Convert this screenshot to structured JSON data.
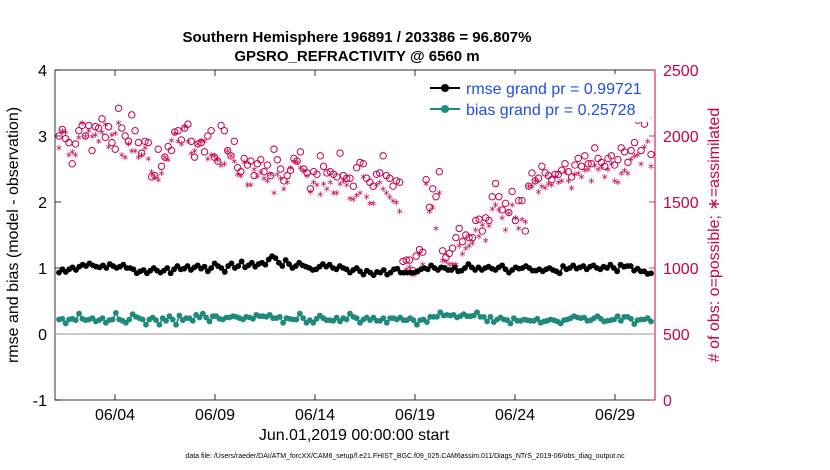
{
  "chart_data": {
    "type": "line",
    "title": "Southern Hemisphere 196891 / 203386 = 96.807%",
    "subtitle": "GPSRO_REFRACTIVITY @ 6560 m",
    "xlabel": "Jun.01,2019 00:00:00 start",
    "ylabel": "rmse and bias (model - observation)",
    "ylabel_right": "# of obs: o=possible; ∗=assimilated",
    "ylim": [
      -1,
      4
    ],
    "ylim_right": [
      0,
      2500
    ],
    "xlim_days": [
      1.0,
      31.0
    ],
    "yticks": [
      "-1",
      "0",
      "1",
      "2",
      "3",
      "4"
    ],
    "yticks_right": [
      "0",
      "500",
      "1000",
      "1500",
      "2000",
      "2500"
    ],
    "xticks": [
      {
        "day": 4,
        "label": "06/04"
      },
      {
        "day": 9,
        "label": "06/09"
      },
      {
        "day": 14,
        "label": "06/14"
      },
      {
        "day": 19,
        "label": "06/19"
      },
      {
        "day": 24,
        "label": "06/24"
      },
      {
        "day": 29,
        "label": "06/29"
      }
    ],
    "legend": [
      "rmse grand pr = 0.99721",
      "bias grand pr = 0.25728"
    ],
    "legend_position": "top-right",
    "footnote": "data file: /Users/raeder/DAI/ATM_forcXX/CAM6_setup/f.e21.FHIST_BGC.f09_025.CAM6assim.011/Diags_NTrS_2019-06/obs_diag_output.nc",
    "colors": {
      "rmse": "#000000",
      "bias": "#1f8a7a",
      "obs": "#c8004e",
      "zero_line": "#a8a8a8"
    },
    "series": [
      {
        "name": "rmse",
        "values": [
          0.93,
          0.98,
          0.94,
          0.98,
          1.01,
          0.97,
          1.02,
          1.05,
          1.03,
          1.07,
          1.04,
          1.02,
          1.01,
          1.04,
          1.0,
          1.06,
          1.03,
          1.0,
          1.02,
          1.05,
          1.0,
          1.0,
          0.98,
          0.92,
          0.95,
          0.97,
          0.92,
          0.96,
          1.0,
          0.96,
          0.93,
          0.96,
          1.0,
          0.92,
          0.98,
          1.03,
          0.98,
          0.99,
          1.03,
          0.97,
          1.01,
          1.04,
          0.99,
          1.02,
          0.95,
          1.0,
          1.07,
          1.03,
          1.0,
          0.94,
          1.03,
          1.07,
          1.0,
          1.03,
          1.1,
          1.01,
          1.04,
          1.08,
          1.02,
          1.06,
          1.08,
          1.05,
          1.13,
          1.18,
          1.15,
          1.08,
          1.03,
          1.12,
          1.06,
          1.0,
          1.03,
          1.08,
          1.04,
          1.02,
          1.0,
          0.97,
          0.98,
          1.02,
          1.06,
          1.02,
          1.05,
          1.0,
          0.98,
          1.03,
          1.0,
          0.98,
          0.93,
          0.97,
          1.0,
          0.95,
          0.9,
          0.96,
          0.93,
          0.89,
          0.94,
          0.93,
          0.97,
          0.9,
          0.93,
          0.98,
          0.99,
          0.93,
          0.93,
          0.93,
          0.93,
          0.93,
          0.95,
          0.98,
          1.0,
          0.98,
          1.04,
          1.0,
          0.97,
          1.01,
          1.0,
          0.97,
          0.97,
          1.01,
          0.95,
          0.96,
          1.0,
          1.06,
          1.01,
          0.97,
          1.01,
          0.97,
          1.0,
          1.02,
          0.99,
          0.97,
          1.01,
          1.04,
          0.98,
          0.93,
          0.97,
          1.01,
          0.99,
          1.0,
          1.03,
          1.0,
          0.96,
          0.96,
          0.98,
          0.95,
          0.98,
          1.0,
          0.97,
          0.95,
          0.92,
          1.03,
          0.98,
          1.0,
          1.04,
          0.99,
          1.01,
          1.03,
          0.98,
          1.02,
          1.04,
          1.0,
          0.98,
          1.02,
          1.0,
          1.05,
          1.0,
          0.95,
          1.05,
          1.02,
          1.03,
          1.03,
          0.96,
          0.99,
          0.95,
          0.95,
          0.91,
          0.92
        ]
      },
      {
        "name": "bias",
        "values": [
          0.22,
          0.23,
          0.16,
          0.22,
          0.23,
          0.21,
          0.31,
          0.23,
          0.21,
          0.22,
          0.24,
          0.19,
          0.21,
          0.24,
          0.17,
          0.21,
          0.22,
          0.32,
          0.22,
          0.2,
          0.17,
          0.22,
          0.3,
          0.26,
          0.24,
          0.22,
          0.14,
          0.22,
          0.25,
          0.21,
          0.14,
          0.24,
          0.2,
          0.27,
          0.22,
          0.14,
          0.28,
          0.21,
          0.24,
          0.24,
          0.2,
          0.29,
          0.25,
          0.31,
          0.25,
          0.19,
          0.27,
          0.27,
          0.23,
          0.22,
          0.25,
          0.25,
          0.27,
          0.26,
          0.24,
          0.22,
          0.26,
          0.25,
          0.23,
          0.29,
          0.27,
          0.27,
          0.26,
          0.29,
          0.24,
          0.24,
          0.26,
          0.17,
          0.24,
          0.23,
          0.22,
          0.22,
          0.31,
          0.24,
          0.17,
          0.21,
          0.17,
          0.23,
          0.28,
          0.24,
          0.21,
          0.21,
          0.2,
          0.25,
          0.19,
          0.24,
          0.22,
          0.31,
          0.26,
          0.24,
          0.17,
          0.22,
          0.25,
          0.21,
          0.25,
          0.2,
          0.2,
          0.24,
          0.17,
          0.24,
          0.24,
          0.22,
          0.25,
          0.21,
          0.21,
          0.24,
          0.21,
          0.14,
          0.21,
          0.22,
          0.18,
          0.26,
          0.26,
          0.26,
          0.33,
          0.28,
          0.29,
          0.28,
          0.29,
          0.25,
          0.27,
          0.3,
          0.27,
          0.27,
          0.28,
          0.33,
          0.26,
          0.26,
          0.19,
          0.26,
          0.18,
          0.22,
          0.25,
          0.22,
          0.21,
          0.16,
          0.24,
          0.2,
          0.2,
          0.22,
          0.21,
          0.2,
          0.2,
          0.23,
          0.17,
          0.19,
          0.2,
          0.22,
          0.21,
          0.19,
          0.16,
          0.21,
          0.22,
          0.24,
          0.27,
          0.25,
          0.24,
          0.25,
          0.2,
          0.21,
          0.24,
          0.27,
          0.23,
          0.19,
          0.2,
          0.21,
          0.22,
          0.27,
          0.2,
          0.26,
          0.26,
          0.23,
          0.15,
          0.21,
          0.22,
          0.22,
          0.24,
          0.19
        ]
      },
      {
        "name": "possible",
        "values": [
          2000,
          2050,
          1980,
          1950,
          1790,
          1940,
          2040,
          2080,
          2000,
          2080,
          1890,
          2070,
          2060,
          2130,
          1990,
          2070,
          1950,
          1900,
          2210,
          2060,
          2000,
          1960,
          2160,
          2040,
          1950,
          1870,
          1960,
          1950,
          1690,
          1700,
          1900,
          1770,
          1840,
          1920,
          1890,
          2030,
          2040,
          1970,
          2060,
          2090,
          1960,
          1840,
          1940,
          1950,
          1880,
          2000,
          2040,
          1840,
          1810,
          2080,
          2040,
          1890,
          1850,
          1960,
          1760,
          1730,
          1830,
          1780,
          1810,
          1700,
          1790,
          1820,
          1730,
          1780,
          1700,
          1900,
          1820,
          1750,
          1660,
          1700,
          1740,
          1830,
          1810,
          1880,
          1750,
          1720,
          1600,
          1730,
          1710,
          1850,
          1770,
          1720,
          1730,
          1710,
          1690,
          1870,
          1700,
          1680,
          1680,
          1620,
          1760,
          1800,
          1790,
          1680,
          1650,
          1620,
          1710,
          1720,
          1850,
          1700,
          1680,
          1620,
          1660,
          1650,
          1050,
          1060,
          1060,
          980,
          1090,
          1140,
          1120,
          1670,
          1460,
          1600,
          1540,
          1730,
          1130,
          1080,
          1110,
          1150,
          1230,
          1300,
          1200,
          1250,
          1230,
          1230,
          1360,
          1370,
          1280,
          1380,
          1360,
          1540,
          1640,
          1540,
          1440,
          1490,
          1420,
          1580,
          1360,
          1510,
          1510,
          1280,
          1620,
          1720,
          1660,
          1680,
          1770,
          1720,
          1700,
          1670,
          1710,
          1710,
          1740,
          1790,
          1730,
          1690,
          1780,
          1830,
          1770,
          1850,
          1790,
          1790,
          1910,
          1830,
          1800,
          1770,
          1830,
          1850,
          1780,
          1820,
          1910,
          1880,
          1800,
          1890,
          1950,
          2120,
          1890,
          2090,
          2140,
          1860
        ]
      },
      {
        "name": "assimilated",
        "values": [
          1900,
          2030,
          2020,
          1850,
          1870,
          1850,
          1980,
          2090,
          1990,
          2030,
          1990,
          2000,
          1950,
          2020,
          2080,
          1910,
          2000,
          2010,
          2090,
          1850,
          1830,
          1930,
          1880,
          1880,
          1830,
          1850,
          1900,
          1820,
          1720,
          1680,
          1660,
          1710,
          1830,
          1810,
          1960,
          2010,
          1950,
          1930,
          2060,
          1950,
          1860,
          1880,
          1930,
          1960,
          1950,
          1820,
          1850,
          1840,
          1810,
          1770,
          1780,
          1880,
          1840,
          1800,
          1700,
          1690,
          1790,
          1620,
          1620,
          1740,
          1690,
          1720,
          1670,
          1650,
          1700,
          1560,
          1700,
          1670,
          1590,
          1640,
          1750,
          1800,
          1790,
          1750,
          1730,
          1690,
          1570,
          1640,
          1620,
          1550,
          1630,
          1590,
          1640,
          1560,
          1560,
          1630,
          1650,
          1620,
          1520,
          1510,
          1540,
          1560,
          1680,
          1530,
          1480,
          1480,
          1620,
          1640,
          1590,
          1560,
          1530,
          1500,
          1490,
          1420,
          950,
          980,
          1000,
          940,
          950,
          1100,
          1020,
          1630,
          1420,
          1450,
          1290,
          1560,
          1050,
          1040,
          1020,
          1020,
          1020,
          1160,
          1100,
          1140,
          1160,
          1180,
          1280,
          1230,
          1320,
          1200,
          1310,
          1440,
          1470,
          1430,
          1370,
          1280,
          1410,
          1470,
          1370,
          1290,
          1360,
          1340,
          1610,
          1610,
          1650,
          1570,
          1610,
          1600,
          1630,
          1620,
          1680,
          1640,
          1650,
          1720,
          1650,
          1600,
          1700,
          1710,
          1680,
          1730,
          1740,
          1650,
          1770,
          1740,
          1760,
          1680,
          1740,
          1780,
          1650,
          1640,
          1710,
          1730,
          1710,
          1820,
          1840,
          1850,
          1780,
          1910,
          1950,
          1760
        ]
      }
    ]
  }
}
